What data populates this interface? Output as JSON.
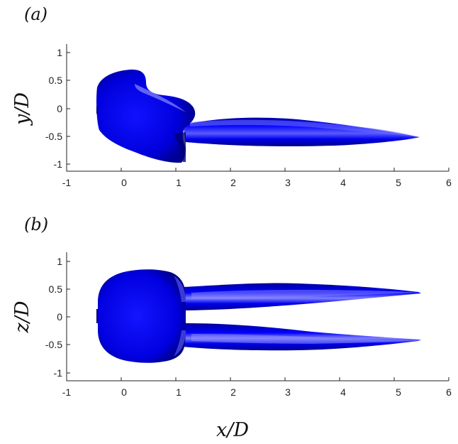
{
  "figure": {
    "xlabel": "x/D",
    "colors": {
      "surface": "#0000ff",
      "surface_dark": "#000066",
      "highlight": "#ccccff",
      "axis": "#222222"
    }
  },
  "panels": [
    {
      "id": "a",
      "label": "(a)",
      "ylabel": "y/D",
      "xticks": [
        "-1",
        "0",
        "1",
        "2",
        "3",
        "4",
        "5",
        "6"
      ],
      "yticks": [
        "1",
        "0.5",
        "0",
        "-0.5",
        "-1"
      ],
      "xlim": [
        -1,
        6
      ],
      "ylim": [
        -1.15,
        1.15
      ],
      "body": {
        "outline_top": [
          [
            -0.45,
            0.55
          ],
          [
            -0.3,
            0.62
          ],
          [
            0.0,
            0.68
          ],
          [
            0.2,
            0.7
          ],
          [
            0.4,
            0.6
          ],
          [
            0.5,
            0.35
          ],
          [
            0.7,
            0.18
          ],
          [
            1.0,
            0.12
          ],
          [
            2.0,
            0.02
          ],
          [
            3.0,
            -0.12
          ],
          [
            4.0,
            -0.25
          ],
          [
            5.0,
            -0.42
          ],
          [
            5.35,
            -0.53
          ],
          [
            5.4,
            -0.55
          ]
        ],
        "outline_bottom": [
          [
            -0.45,
            -0.45
          ],
          [
            -0.2,
            -0.6
          ],
          [
            0.3,
            -0.78
          ],
          [
            0.9,
            -0.95
          ],
          [
            1.0,
            -0.92
          ],
          [
            1.05,
            -0.6
          ],
          [
            1.2,
            -0.52
          ],
          [
            2.0,
            -0.55
          ],
          [
            3.0,
            -0.63
          ],
          [
            4.0,
            -0.65
          ],
          [
            5.0,
            -0.62
          ],
          [
            5.4,
            -0.57
          ]
        ]
      }
    },
    {
      "id": "b",
      "label": "(b)",
      "ylabel": "z/D",
      "xticks": [
        "-1",
        "0",
        "1",
        "2",
        "3",
        "4",
        "5",
        "6"
      ],
      "yticks": [
        "1",
        "0.5",
        "0",
        "-0.5",
        "-1"
      ],
      "xlim": [
        -1,
        6
      ],
      "ylim": [
        -1.15,
        1.15
      ],
      "body": {
        "head_top": [
          [
            -0.48,
            0.25
          ],
          [
            -0.35,
            0.6
          ],
          [
            -0.1,
            0.73
          ],
          [
            0.3,
            0.77
          ],
          [
            0.8,
            0.72
          ],
          [
            1.0,
            0.55
          ]
        ],
        "head_bottom": [
          [
            -0.48,
            -0.25
          ],
          [
            -0.35,
            -0.6
          ],
          [
            -0.1,
            -0.72
          ],
          [
            0.3,
            -0.77
          ],
          [
            0.8,
            -0.72
          ],
          [
            1.0,
            -0.55
          ]
        ],
        "upper_tail": {
          "top": [
            [
              1.0,
              0.55
            ],
            [
              1.2,
              0.5
            ],
            [
              2.0,
              0.55
            ],
            [
              3.0,
              0.6
            ],
            [
              4.0,
              0.55
            ],
            [
              5.0,
              0.47
            ],
            [
              5.4,
              0.42
            ]
          ],
          "bottom": [
            [
              5.4,
              0.42
            ],
            [
              5.0,
              0.38
            ],
            [
              4.0,
              0.33
            ],
            [
              3.0,
              0.27
            ],
            [
              2.0,
              0.22
            ],
            [
              1.2,
              0.18
            ],
            [
              1.05,
              0.15
            ]
          ]
        },
        "lower_tail": {
          "top": [
            [
              1.05,
              -0.1
            ],
            [
              1.2,
              -0.1
            ],
            [
              2.0,
              -0.13
            ],
            [
              3.0,
              -0.22
            ],
            [
              4.0,
              -0.3
            ],
            [
              5.0,
              -0.37
            ],
            [
              5.4,
              -0.4
            ]
          ],
          "bottom": [
            [
              5.4,
              -0.42
            ],
            [
              5.0,
              -0.47
            ],
            [
              4.0,
              -0.55
            ],
            [
              3.0,
              -0.58
            ],
            [
              2.0,
              -0.55
            ],
            [
              1.2,
              -0.5
            ],
            [
              1.0,
              -0.55
            ]
          ]
        }
      }
    }
  ]
}
